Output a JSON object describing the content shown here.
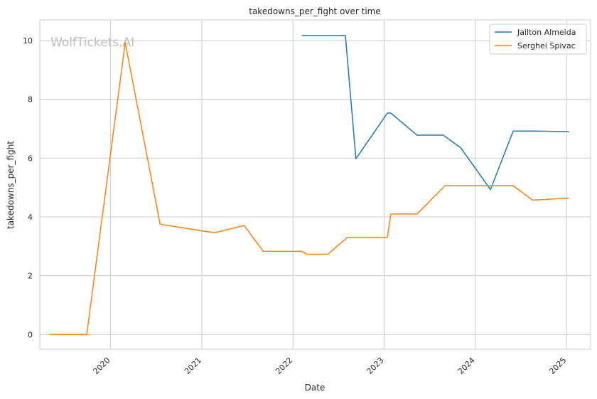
{
  "chart_data": {
    "type": "line",
    "title": "takedowns_per_fight over time",
    "xlabel": "Date",
    "ylabel": "takedowns_per_fight",
    "watermark": "WolfTickets.AI",
    "x_ticks": [
      "2020",
      "2021",
      "2022",
      "2023",
      "2024",
      "2025"
    ],
    "y_ticks": [
      "0",
      "2",
      "4",
      "6",
      "8",
      "10"
    ],
    "xlim": [
      "2019-03-24",
      "2025-04-07"
    ],
    "ylim": [
      -0.5,
      10.7
    ],
    "grid": true,
    "legend_position": "top-right",
    "colors": {
      "Jailton Almeida": "#1f77b4",
      "Serghei Spivac": "#ff7f0e"
    },
    "series": [
      {
        "name": "Jailton Almeida",
        "color": "#1f77b4",
        "points": [
          {
            "x": "2022-02-05",
            "y": 10.17
          },
          {
            "x": "2022-07-30",
            "y": 10.17
          },
          {
            "x": "2022-09-10",
            "y": 5.98
          },
          {
            "x": "2023-01-14",
            "y": 7.53
          },
          {
            "x": "2023-01-28",
            "y": 7.53
          },
          {
            "x": "2023-05-13",
            "y": 6.78
          },
          {
            "x": "2023-08-26",
            "y": 6.78
          },
          {
            "x": "2023-11-04",
            "y": 6.35
          },
          {
            "x": "2024-03-02",
            "y": 4.93
          },
          {
            "x": "2024-06-01",
            "y": 6.92
          },
          {
            "x": "2024-08-24",
            "y": 6.92
          },
          {
            "x": "2025-01-11",
            "y": 6.9
          }
        ]
      },
      {
        "name": "Serghei Spivac",
        "color": "#ff7f0e",
        "points": [
          {
            "x": "2019-05-04",
            "y": 0
          },
          {
            "x": "2019-09-28",
            "y": 0
          },
          {
            "x": "2020-02-29",
            "y": 9.93
          },
          {
            "x": "2020-07-18",
            "y": 3.75
          },
          {
            "x": "2021-02-20",
            "y": 3.46
          },
          {
            "x": "2021-06-19",
            "y": 3.71
          },
          {
            "x": "2021-09-04",
            "y": 2.83
          },
          {
            "x": "2022-02-05",
            "y": 2.83
          },
          {
            "x": "2022-02-26",
            "y": 2.73
          },
          {
            "x": "2022-05-21",
            "y": 2.73
          },
          {
            "x": "2022-08-06",
            "y": 3.3
          },
          {
            "x": "2023-01-14",
            "y": 3.3
          },
          {
            "x": "2023-01-28",
            "y": 4.1
          },
          {
            "x": "2023-05-13",
            "y": 4.1
          },
          {
            "x": "2023-09-02",
            "y": 5.06
          },
          {
            "x": "2024-03-02",
            "y": 5.06
          },
          {
            "x": "2024-06-01",
            "y": 5.06
          },
          {
            "x": "2024-08-17",
            "y": 4.57
          },
          {
            "x": "2025-01-11",
            "y": 4.64
          }
        ]
      }
    ]
  }
}
